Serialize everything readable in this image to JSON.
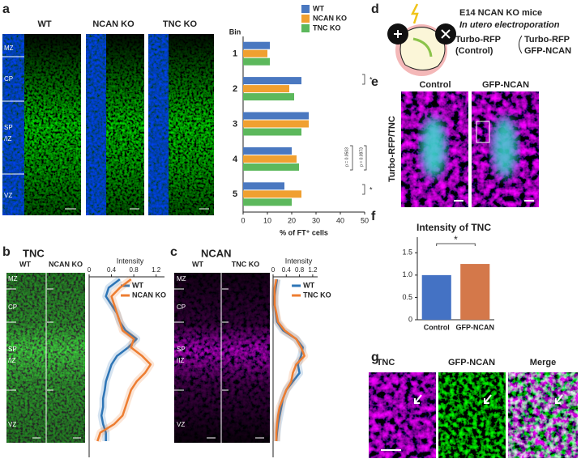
{
  "chart_data": [
    {
      "type": "hbar",
      "category_label": "Bin",
      "categories": [
        "1",
        "2",
        "3",
        "4",
        "5"
      ],
      "series": [
        {
          "name": "WT",
          "color": "#4a78c0",
          "values": [
            11,
            24,
            27,
            20,
            17
          ]
        },
        {
          "name": "NCAN KO",
          "color": "#f0a030",
          "values": [
            10,
            19,
            27,
            22,
            24
          ]
        },
        {
          "name": "TNC KO",
          "color": "#5cb85c",
          "values": [
            11,
            21,
            24,
            23,
            20
          ]
        }
      ],
      "xlim": [
        0,
        50
      ],
      "xticks": [
        0,
        10,
        20,
        30,
        40,
        50
      ],
      "xlabel": "% of FT⁺ cells",
      "annotations": [
        "*",
        "*",
        "p = 0.0503",
        "p = 0.0973"
      ]
    },
    {
      "type": "profile",
      "title": "Intensity",
      "xlim": [
        0,
        1.35
      ],
      "xticks": [
        0,
        0.4,
        0.8,
        1.2
      ],
      "series": [
        {
          "name": "WT",
          "color": "#2e75b6",
          "values": [
            0.55,
            0.35,
            0.3,
            0.4,
            0.5,
            0.55,
            0.65,
            0.85,
            0.7,
            0.5,
            0.4,
            0.35,
            0.3,
            0.28,
            0.25,
            0.25,
            0.22,
            0.25,
            0.3,
            0.3
          ]
        },
        {
          "name": "NCAN KO",
          "color": "#ed7d31",
          "values": [
            0.75,
            0.55,
            0.4,
            0.45,
            0.5,
            0.55,
            0.6,
            0.8,
            0.75,
            0.95,
            1.1,
            1.0,
            0.85,
            0.75,
            0.7,
            0.65,
            0.6,
            0.45,
            0.2,
            0.15
          ]
        }
      ]
    },
    {
      "type": "profile",
      "title": "Intensity",
      "xlim": [
        0,
        1.35
      ],
      "xticks": [
        0,
        0.4,
        0.8,
        1.2
      ],
      "series": [
        {
          "name": "WT",
          "color": "#2e75b6",
          "values": [
            0.12,
            0.08,
            0.05,
            0.05,
            0.08,
            0.12,
            0.3,
            0.7,
            0.9,
            0.85,
            0.75,
            0.8,
            0.6,
            0.4,
            0.3,
            0.25,
            0.2,
            0.15,
            0.12,
            0.1
          ]
        },
        {
          "name": "TNC KO",
          "color": "#ed7d31",
          "values": [
            0.1,
            0.05,
            0.05,
            0.05,
            0.1,
            0.15,
            0.35,
            0.7,
            0.85,
            0.95,
            0.7,
            0.6,
            0.55,
            0.4,
            0.3,
            0.2,
            0.15,
            0.12,
            0.1,
            0.1
          ]
        }
      ]
    },
    {
      "type": "bar",
      "title": "Intensity of TNC",
      "categories": [
        "Control",
        "GFP-NCAN"
      ],
      "values": [
        1,
        1.25
      ],
      "colors": [
        "#4472c4",
        "#d4784a"
      ],
      "ylim": [
        0,
        1.85
      ],
      "yticks": [
        0,
        0.5,
        {
          "value": 1,
          "label": "1.0"
        },
        1.5
      ],
      "annotations": [
        "*"
      ]
    }
  ],
  "figure": {
    "panel_letters": [
      "a",
      "b",
      "c",
      "d",
      "e",
      "f",
      "g"
    ],
    "layers": [
      "MZ",
      "CP",
      "SP",
      "/IZ",
      "VZ"
    ],
    "a_images": [
      "WT",
      "NCAN KO",
      "TNC KO"
    ],
    "b_title": "TNC",
    "b_images": [
      "WT",
      "NCAN KO"
    ],
    "c_title": "NCAN",
    "c_images": [
      "WT",
      "TNC KO"
    ],
    "d": {
      "title": "E14 NCAN KO mice",
      "subtitle": "In utero electroporation",
      "control": [
        "Turbo-RFP",
        "(Control)"
      ],
      "experimental": [
        "Turbo-RFP",
        "GFP-NCAN"
      ]
    },
    "e": {
      "columns": [
        "Control",
        "GFP-NCAN"
      ],
      "side_label": "Turbo-RFP/TNC"
    },
    "g": {
      "columns": [
        "TNC",
        "GFP-NCAN",
        "Merge"
      ]
    }
  }
}
